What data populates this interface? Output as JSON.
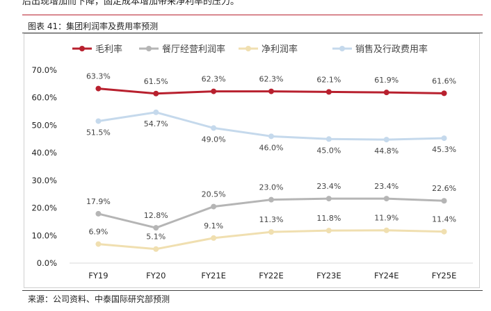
{
  "page": {
    "top_text": "后出现增加而下降，固定成本增加带来净利率的压力。",
    "figure_title": "图表 41：集团利润率及费用率预测",
    "source": "来源：公司资料、中泰国际研究部预测"
  },
  "chart_data": {
    "type": "line",
    "categories": [
      "FY19",
      "FY20",
      "FY21E",
      "FY22E",
      "FY23E",
      "FY24E",
      "FY25E"
    ],
    "y_ticks": [
      "0.0%",
      "10.0%",
      "20.0%",
      "30.0%",
      "40.0%",
      "50.0%",
      "60.0%",
      "70.0%"
    ],
    "ylim": [
      0,
      70
    ],
    "legend_position": "top",
    "series": [
      {
        "name": "毛利率",
        "color": "#b8202e",
        "values": [
          63.3,
          61.5,
          62.3,
          62.3,
          62.1,
          61.9,
          61.6
        ],
        "labels": [
          "63.3%",
          "61.5%",
          "62.3%",
          "62.3%",
          "62.1%",
          "61.9%",
          "61.6%"
        ]
      },
      {
        "name": "餐厅经营利润率",
        "color": "#b5b5b5",
        "values": [
          17.9,
          12.8,
          20.5,
          23.0,
          23.4,
          23.4,
          22.6
        ],
        "labels": [
          "17.9%",
          "12.8%",
          "20.5%",
          "23.0%",
          "23.4%",
          "23.4%",
          "22.6%"
        ]
      },
      {
        "name": "净利润率",
        "color": "#f0dfb0",
        "values": [
          6.9,
          5.1,
          9.1,
          11.3,
          11.8,
          11.9,
          11.4
        ],
        "labels": [
          "6.9%",
          "5.1%",
          "9.1%",
          "11.3%",
          "11.8%",
          "11.9%",
          "11.4%"
        ]
      },
      {
        "name": "销售及行政费用率",
        "color": "#c5d9ec",
        "values": [
          51.5,
          54.7,
          49.0,
          46.0,
          45.0,
          44.8,
          45.3
        ],
        "labels": [
          "51.5%",
          "54.7%",
          "49.0%",
          "46.0%",
          "45.0%",
          "44.8%",
          "45.3%"
        ]
      }
    ]
  }
}
